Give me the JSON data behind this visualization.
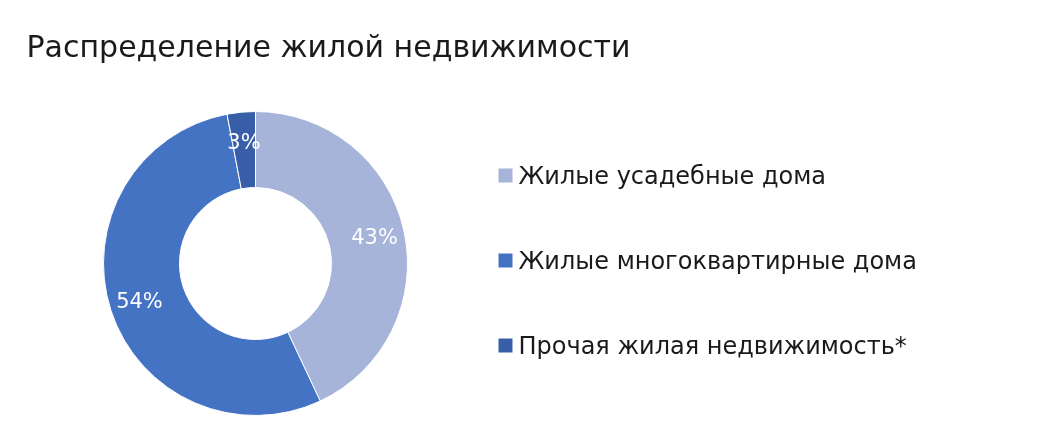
{
  "chart_data": {
    "type": "donut",
    "title": "Распределение жилой недвижимости",
    "categories": [
      "Жилые усадебные дома",
      "Жилые многоквартирные дома",
      "Прочая жилая недвижимость*"
    ],
    "values": [
      43,
      54,
      3
    ],
    "colors": [
      "#a6b4da",
      "#4573c4",
      "#395ea8"
    ],
    "value_labels": [
      "43%",
      "54%",
      "3%"
    ],
    "legend": "right"
  }
}
